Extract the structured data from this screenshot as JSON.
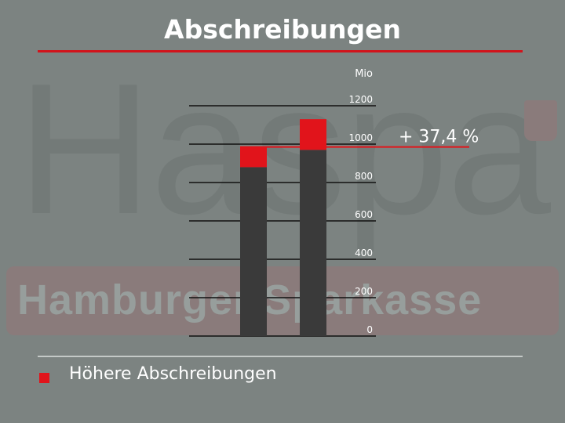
{
  "slide": {
    "title": "Abschreibungen",
    "legend_label": "Höhere Abschreibungen",
    "watermark": {
      "big_text": "Haspa",
      "band_text": "Hamburger Sparkasse"
    }
  },
  "colors": {
    "background": "#7c8381",
    "accent_red": "#e1141b",
    "bar_dark": "#3a3a3a",
    "text": "#ffffff"
  },
  "chart_data": {
    "type": "bar",
    "stacked": true,
    "categories": [
      "",
      ""
    ],
    "series": [
      {
        "name": "",
        "color": "#3a3a3a",
        "values": [
          880,
          970
        ]
      },
      {
        "name": "Höhere Abschreibungen",
        "color": "#e1141b",
        "values": [
          105,
          160
        ]
      }
    ],
    "unit_label": "Mio",
    "ylim": [
      0,
      1200
    ],
    "yticks": [
      0,
      200,
      400,
      600,
      800,
      1000,
      1200
    ],
    "reference_value": 985,
    "annotation": "+ 37,4 %",
    "grid": true
  }
}
